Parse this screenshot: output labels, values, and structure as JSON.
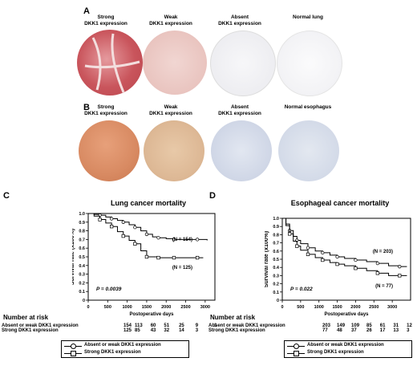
{
  "panels": {
    "a": {
      "label": "A",
      "tiles": [
        {
          "label_line1": "Strong",
          "label_line2": "DKK1 expression"
        },
        {
          "label_line1": "Weak",
          "label_line2": "DKK1 expression"
        },
        {
          "label_line1": "Absent",
          "label_line2": "DKK1 expression"
        },
        {
          "label_line1": "Normal lung",
          "label_line2": ""
        }
      ]
    },
    "b": {
      "label": "B",
      "tiles": [
        {
          "label_line1": "Strong",
          "label_line2": "DKK1 expression"
        },
        {
          "label_line1": "Weak",
          "label_line2": "DKK1 expression"
        },
        {
          "label_line1": "Absent",
          "label_line2": "DKK1 expression"
        },
        {
          "label_line1": "Normal esophagus",
          "label_line2": ""
        }
      ]
    },
    "c": {
      "label": "C"
    },
    "d": {
      "label": "D"
    }
  },
  "colors": {
    "strong_stain": "#c9555c",
    "weak_stain": "#e9c4bf",
    "absent_stain": "#e8e8ee",
    "esoph_strong": "#d88a62",
    "esoph_weak": "#ddb895",
    "esoph_absent": "#cfd6e6"
  },
  "chart_data": [
    {
      "type": "line",
      "title": "Lung cancer mortality",
      "xlabel": "Postoperative days",
      "ylabel": "Survival rate (x100%)",
      "xlim": [
        0,
        3250
      ],
      "ylim": [
        0,
        1.0
      ],
      "xticks": [
        0,
        500,
        1000,
        1500,
        2000,
        2500,
        3000
      ],
      "yticks": [
        0,
        0.1,
        0.2,
        0.3,
        0.4,
        0.5,
        0.6,
        0.7,
        0.8,
        0.9,
        1.0
      ],
      "ytick_labels": [
        "0",
        "0.1",
        "0.2",
        "0.3",
        "0.4",
        "0.5",
        "0.6",
        "0.7",
        "0.8",
        "0.9",
        "1.0"
      ],
      "pvalue": "P = 0.0039",
      "series": [
        {
          "name": "Absent or weak DKK1 expression",
          "marker": "circle",
          "n_label": "(N = 154)",
          "x": [
            0,
            150,
            300,
            450,
            600,
            750,
            900,
            1050,
            1200,
            1350,
            1500,
            1650,
            1800,
            2000,
            2200,
            2500,
            2800,
            3050
          ],
          "y": [
            1.0,
            0.99,
            0.98,
            0.96,
            0.94,
            0.92,
            0.9,
            0.87,
            0.84,
            0.8,
            0.76,
            0.73,
            0.72,
            0.71,
            0.7,
            0.7,
            0.7,
            0.69
          ]
        },
        {
          "name": "Strong DKK1 expression",
          "marker": "square",
          "n_label": "(N = 125)",
          "x": [
            0,
            150,
            300,
            450,
            600,
            750,
            900,
            1050,
            1200,
            1350,
            1500,
            1650,
            1800,
            2000,
            2200,
            2500,
            2800,
            2950
          ],
          "y": [
            1.0,
            0.97,
            0.93,
            0.89,
            0.85,
            0.79,
            0.74,
            0.69,
            0.65,
            0.57,
            0.5,
            0.5,
            0.49,
            0.49,
            0.49,
            0.49,
            0.49,
            0.49
          ]
        }
      ],
      "risk_table": {
        "header": "Number at risk",
        "rows": [
          {
            "label": "Absent or weak DKK1 expression",
            "values": [
              "154",
              "113",
              "60",
              "51",
              "25",
              "9",
              "1"
            ]
          },
          {
            "label": "Strong DKK1 expression",
            "values": [
              "125",
              "85",
              "43",
              "32",
              "14",
              "3",
              ""
            ]
          }
        ]
      }
    },
    {
      "type": "line",
      "title": "Esophageal cancer mortality",
      "xlabel": "Postoperative days",
      "ylabel": "Survival rate (x100%)",
      "xlim": [
        0,
        3500
      ],
      "ylim": [
        0,
        1.0
      ],
      "xticks": [
        0,
        500,
        1000,
        1500,
        2000,
        2500,
        3000
      ],
      "yticks": [
        0,
        0.1,
        0.2,
        0.3,
        0.4,
        0.5,
        0.6,
        0.7,
        0.8,
        0.9,
        1.0
      ],
      "ytick_labels": [
        "0",
        "0.1",
        "0.2",
        "0.3",
        "0.4",
        "0.5",
        "0.6",
        "0.7",
        "0.8",
        "0.9",
        "1.0"
      ],
      "pvalue": "P = 0.022",
      "series": [
        {
          "name": "Absent or weak DKK1 expression",
          "marker": "circle",
          "n_label": "(N = 203)",
          "x": [
            0,
            100,
            200,
            300,
            400,
            500,
            700,
            900,
            1100,
            1300,
            1500,
            1700,
            2000,
            2300,
            2600,
            2900,
            3200,
            3400
          ],
          "y": [
            1.0,
            0.93,
            0.85,
            0.78,
            0.73,
            0.69,
            0.64,
            0.6,
            0.58,
            0.55,
            0.53,
            0.51,
            0.49,
            0.47,
            0.45,
            0.42,
            0.41,
            0.41
          ]
        },
        {
          "name": "Strong DKK1 expression",
          "marker": "square",
          "n_label": "(N = 77)",
          "x": [
            0,
            100,
            200,
            300,
            400,
            500,
            700,
            900,
            1100,
            1300,
            1500,
            1700,
            2000,
            2300,
            2600,
            2900,
            3200,
            3400
          ],
          "y": [
            1.0,
            0.91,
            0.81,
            0.72,
            0.66,
            0.61,
            0.56,
            0.52,
            0.49,
            0.46,
            0.44,
            0.42,
            0.39,
            0.36,
            0.33,
            0.3,
            0.3,
            0.3
          ]
        }
      ],
      "risk_table": {
        "header": "Number at risk",
        "rows": [
          {
            "label": "Absent or weak DKK1 expression",
            "values": [
              "203",
              "149",
              "109",
              "85",
              "61",
              "31",
              "12"
            ]
          },
          {
            "label": "Strong DKK1 expression",
            "values": [
              "77",
              "48",
              "37",
              "26",
              "17",
              "13",
              "3"
            ]
          }
        ]
      }
    }
  ]
}
